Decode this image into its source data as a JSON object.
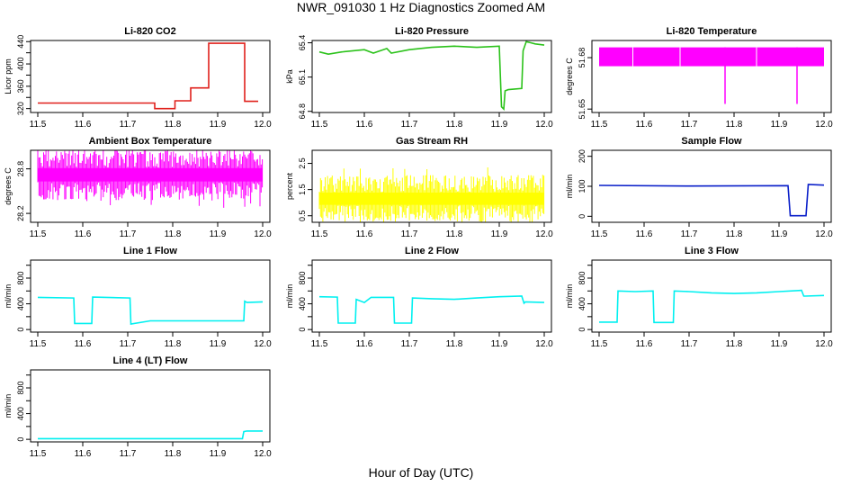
{
  "figure": {
    "title": "NWR_091030  1 Hz Diagnostics Zoomed AM",
    "xlabel": "Hour of Day (UTC)"
  },
  "chart_data": [
    {
      "type": "line",
      "title": "Li-820 CO2",
      "ylabel": "Licor ppm",
      "color": "#e0201b",
      "xlim": [
        11.5,
        12.0
      ],
      "xticks": [
        "11.5",
        "11.6",
        "11.7",
        "11.8",
        "11.9",
        "12.0"
      ],
      "ylim": [
        313,
        442
      ],
      "yticks": [
        320,
        340,
        360,
        380,
        400,
        420,
        440
      ],
      "ytick_labels": [
        "320",
        "",
        "360",
        "",
        "400",
        "",
        "440"
      ],
      "series": [
        {
          "x": [
            11.5,
            11.76,
            11.76,
            11.805,
            11.805,
            11.84,
            11.84,
            11.88,
            11.88,
            11.96,
            11.96,
            11.99
          ],
          "y": [
            330,
            330,
            320,
            320,
            334,
            334,
            357,
            357,
            437,
            437,
            333,
            333
          ]
        }
      ]
    },
    {
      "type": "line",
      "title": "Li-820 Pressure",
      "ylabel": "kPa",
      "color": "#2bc21a",
      "xlim": [
        11.5,
        12.0
      ],
      "xticks": [
        "11.5",
        "11.6",
        "11.7",
        "11.8",
        "11.9",
        "12.0"
      ],
      "ylim": [
        64.79,
        65.42
      ],
      "yticks": [
        64.8,
        65.1,
        65.4
      ],
      "ytick_labels": [
        "64.8",
        "65.1",
        "65.4"
      ],
      "series": [
        {
          "x": [
            11.5,
            11.52,
            11.55,
            11.6,
            11.62,
            11.65,
            11.66,
            11.7,
            11.75,
            11.8,
            11.85,
            11.9,
            11.905,
            11.91,
            11.913,
            11.92,
            11.95,
            11.953,
            11.96,
            11.97,
            11.98,
            12.0
          ],
          "y": [
            65.32,
            65.3,
            65.32,
            65.34,
            65.31,
            65.35,
            65.31,
            65.34,
            65.36,
            65.37,
            65.36,
            65.37,
            64.84,
            64.82,
            64.98,
            64.99,
            65.0,
            65.33,
            65.41,
            65.4,
            65.39,
            65.38
          ]
        }
      ]
    },
    {
      "type": "line",
      "title": "Li-820 Temperature",
      "ylabel": "degrees C",
      "color": "#ff00ff",
      "xlim": [
        11.5,
        12.0
      ],
      "xticks": [
        "11.5",
        "11.6",
        "11.7",
        "11.8",
        "11.9",
        "12.0"
      ],
      "ylim": [
        51.648,
        51.69
      ],
      "yticks": [
        51.65,
        51.68
      ],
      "ytick_labels": [
        "51.65",
        "51.68"
      ],
      "series": [
        {
          "x": [
            11.5,
            12.0
          ],
          "y": [
            51.686,
            51.675
          ],
          "band": true,
          "spikes": [
            {
              "x": 11.78,
              "y": 51.653
            },
            {
              "x": 11.94,
              "y": 51.653
            }
          ]
        }
      ]
    },
    {
      "type": "line",
      "title": "Ambient Box Temperature",
      "ylabel": "degrees C",
      "color": "#ff00ff",
      "xlim": [
        11.5,
        12.0
      ],
      "xticks": [
        "11.5",
        "11.6",
        "11.7",
        "11.8",
        "11.9",
        "12.0"
      ],
      "ylim": [
        28.08,
        29.05
      ],
      "yticks": [
        28.2,
        28.8
      ],
      "ytick_labels": [
        "28.2",
        "28.8"
      ],
      "series": [
        {
          "x": [
            11.5,
            12.0
          ],
          "y": [
            28.72,
            28.72
          ],
          "noise": [
            28.45,
            28.95
          ]
        }
      ]
    },
    {
      "type": "line",
      "title": "Gas Stream RH",
      "ylabel": "percent",
      "color": "#ffff00",
      "xlim": [
        11.5,
        12.0
      ],
      "xticks": [
        "11.5",
        "11.6",
        "11.7",
        "11.8",
        "11.9",
        "12.0"
      ],
      "ylim": [
        0.25,
        3.0
      ],
      "yticks": [
        0.5,
        1.5,
        2.5
      ],
      "ytick_labels": [
        "0.5",
        "1.5",
        "2.5"
      ],
      "series": [
        {
          "x": [
            11.5,
            12.0
          ],
          "y": [
            1.15,
            1.15
          ],
          "noise": [
            0.6,
            1.9
          ]
        }
      ]
    },
    {
      "type": "line",
      "title": "Sample Flow",
      "ylabel": "ml/min",
      "color": "#0a1fc9",
      "xlim": [
        11.5,
        12.0
      ],
      "xticks": [
        "11.5",
        "11.6",
        "11.7",
        "11.8",
        "11.9",
        "12.0"
      ],
      "ylim": [
        -20,
        220
      ],
      "yticks": [
        0,
        100,
        200
      ],
      "ytick_labels": [
        "0",
        "100",
        "200"
      ],
      "series": [
        {
          "x": [
            11.5,
            11.7,
            11.92,
            11.925,
            11.96,
            11.965,
            12.0
          ],
          "y": [
            103,
            101,
            102,
            2,
            2,
            106,
            104
          ]
        }
      ]
    },
    {
      "type": "line",
      "title": "Line 1 Flow",
      "ylabel": "ml/min",
      "color": "#00f0f0",
      "xlim": [
        11.5,
        12.0
      ],
      "xticks": [
        "11.5",
        "11.6",
        "11.7",
        "11.8",
        "11.9",
        "12.0"
      ],
      "ylim": [
        -40,
        1080
      ],
      "yticks": [
        0,
        200,
        400,
        600,
        800,
        1000
      ],
      "ytick_labels": [
        "0",
        "",
        "400",
        "",
        "800",
        ""
      ],
      "series": [
        {
          "x": [
            11.5,
            11.58,
            11.582,
            11.62,
            11.622,
            11.705,
            11.707,
            11.75,
            11.958,
            11.96,
            11.965,
            12.0
          ],
          "y": [
            500,
            490,
            95,
            95,
            505,
            490,
            85,
            135,
            135,
            440,
            420,
            430
          ]
        }
      ]
    },
    {
      "type": "line",
      "title": "Line 2 Flow",
      "ylabel": "ml/min",
      "color": "#00f0f0",
      "xlim": [
        11.5,
        12.0
      ],
      "xticks": [
        "11.5",
        "11.6",
        "11.7",
        "11.8",
        "11.9",
        "12.0"
      ],
      "ylim": [
        -40,
        1080
      ],
      "yticks": [
        0,
        200,
        400,
        600,
        800,
        1000
      ],
      "ytick_labels": [
        "0",
        "",
        "400",
        "",
        "800",
        ""
      ],
      "series": [
        {
          "x": [
            11.5,
            11.54,
            11.542,
            11.58,
            11.582,
            11.6,
            11.615,
            11.665,
            11.667,
            11.705,
            11.707,
            11.75,
            11.8,
            11.85,
            11.9,
            11.95,
            11.955,
            11.958,
            12.0
          ],
          "y": [
            510,
            505,
            100,
            100,
            470,
            420,
            500,
            500,
            100,
            100,
            490,
            480,
            470,
            490,
            510,
            520,
            410,
            430,
            420
          ]
        }
      ]
    },
    {
      "type": "line",
      "title": "Line 3 Flow",
      "ylabel": "ml/min",
      "color": "#00f0f0",
      "xlim": [
        11.5,
        12.0
      ],
      "xticks": [
        "11.5",
        "11.6",
        "11.7",
        "11.8",
        "11.9",
        "12.0"
      ],
      "ylim": [
        -40,
        1080
      ],
      "yticks": [
        0,
        200,
        400,
        600,
        800,
        1000
      ],
      "ytick_labels": [
        "0",
        "",
        "400",
        "",
        "800",
        ""
      ],
      "series": [
        {
          "x": [
            11.5,
            11.54,
            11.542,
            11.58,
            11.62,
            11.622,
            11.665,
            11.667,
            11.7,
            11.75,
            11.8,
            11.85,
            11.9,
            11.95,
            11.955,
            11.958,
            12.0
          ],
          "y": [
            115,
            115,
            600,
            590,
            600,
            110,
            110,
            600,
            590,
            570,
            560,
            570,
            590,
            610,
            520,
            520,
            530
          ]
        }
      ]
    },
    {
      "type": "line",
      "title": "Line 4 (LT) Flow",
      "ylabel": "ml/min",
      "color": "#00f0f0",
      "xlim": [
        11.5,
        12.0
      ],
      "xticks": [
        "11.5",
        "11.6",
        "11.7",
        "11.8",
        "11.9",
        "12.0"
      ],
      "ylim": [
        -40,
        1080
      ],
      "yticks": [
        0,
        200,
        400,
        600,
        800,
        1000
      ],
      "ytick_labels": [
        "0",
        "",
        "400",
        "",
        "800",
        ""
      ],
      "series": [
        {
          "x": [
            11.5,
            11.955,
            11.958,
            11.965,
            12.0
          ],
          "y": [
            10,
            10,
            120,
            130,
            130
          ]
        }
      ]
    }
  ]
}
